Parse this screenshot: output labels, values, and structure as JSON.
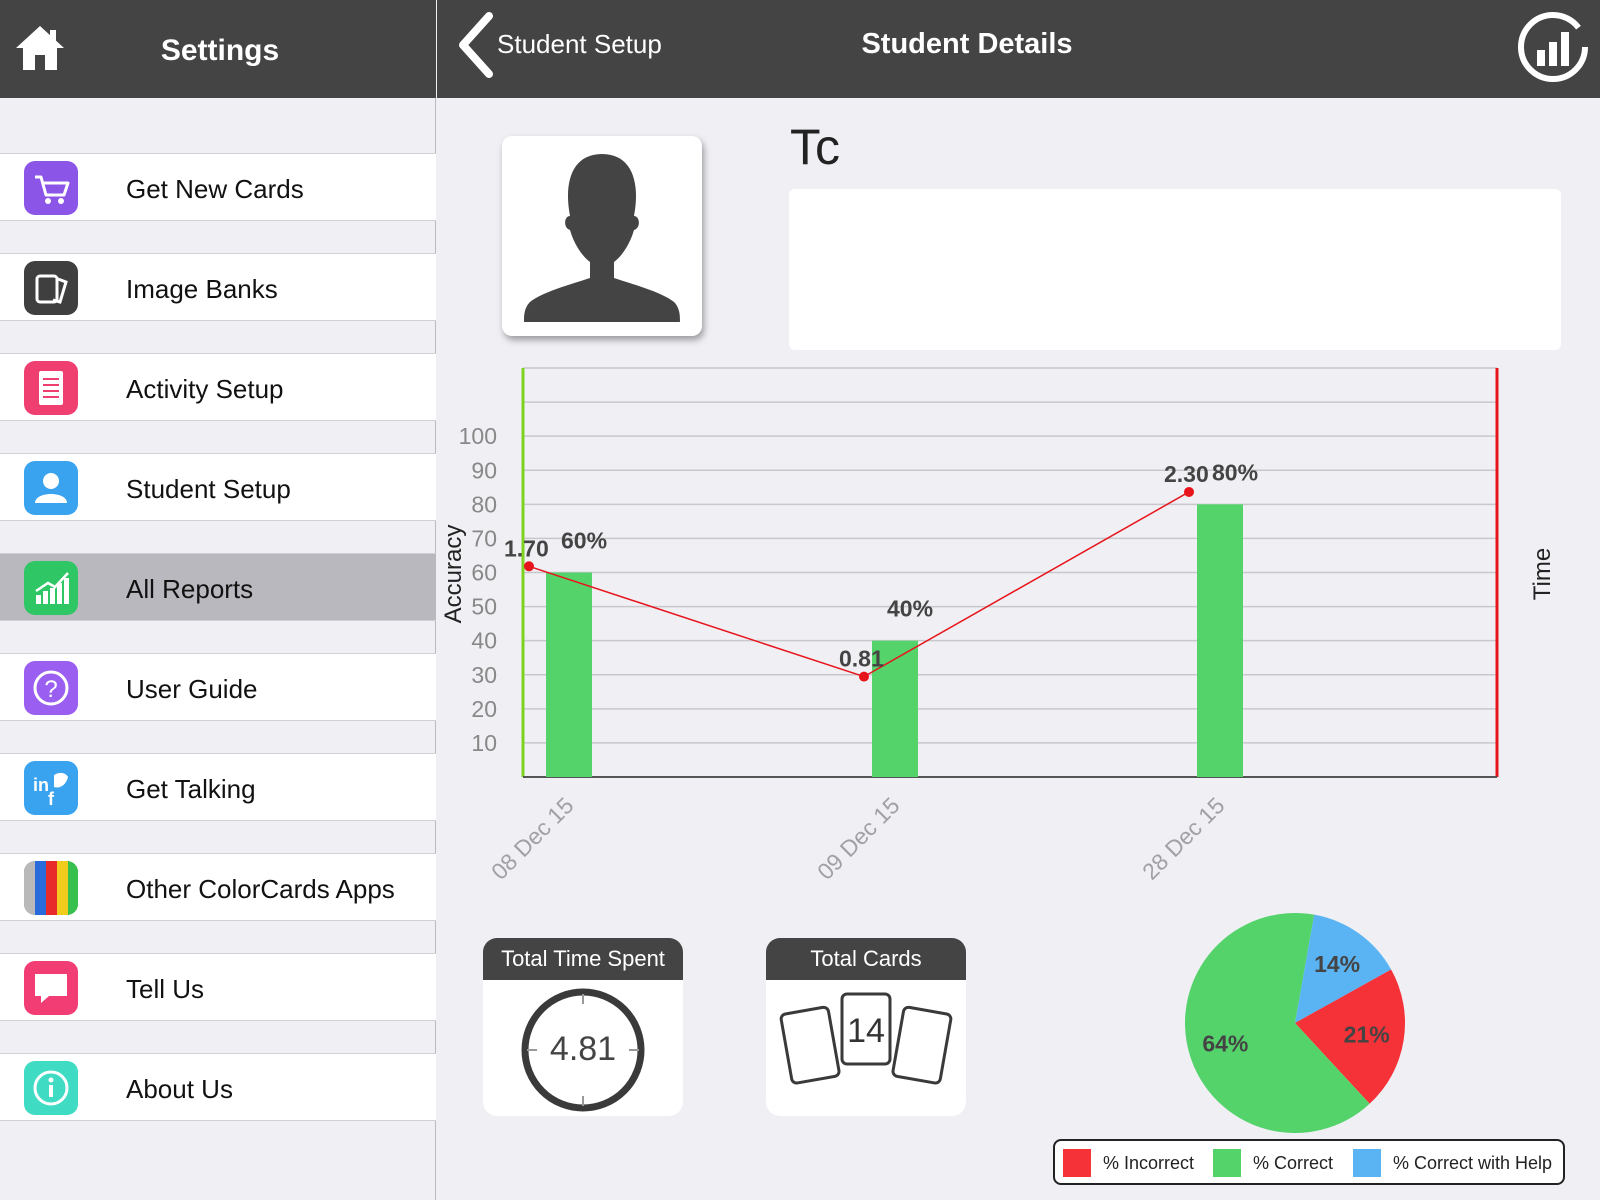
{
  "sidebar": {
    "title": "Settings",
    "items": [
      {
        "label": "Get New Cards",
        "icon": "shopping-cart-icon",
        "color": "#8b55e8"
      },
      {
        "label": "Image Banks",
        "icon": "image-banks-icon",
        "color": "#3f3f3f"
      },
      {
        "label": "Activity Setup",
        "icon": "checklist-icon",
        "color": "#ef3e70"
      },
      {
        "label": "Student Setup",
        "icon": "person-icon",
        "color": "#3aa3ef"
      },
      {
        "label": "All Reports",
        "icon": "bar-chart-icon",
        "color": "#2fc766",
        "selected": true
      },
      {
        "label": "User Guide",
        "icon": "question-icon",
        "color": "#9a5ef0"
      },
      {
        "label": "Get Talking",
        "icon": "social-icon",
        "color": "#3aa3ef"
      },
      {
        "label": "Other ColorCards Apps",
        "icon": "color-stripes-icon",
        "color": "#888888"
      },
      {
        "label": "Tell Us",
        "icon": "speech-bubble-icon",
        "color": "#f23c74"
      },
      {
        "label": "About Us",
        "icon": "info-icon",
        "color": "#3fdcc3"
      }
    ]
  },
  "header": {
    "back_label": "Student Setup",
    "title": "Student Details"
  },
  "student": {
    "name": "Tc",
    "notes": ""
  },
  "chart_data": {
    "type": "bar",
    "categories": [
      "08 Dec 15",
      "09 Dec 15",
      "28 Dec 15"
    ],
    "series": [
      {
        "type": "bar",
        "values": [
          60,
          40,
          80
        ],
        "labels": [
          "60%",
          "40%",
          "80%"
        ],
        "color": "#55d36b"
      },
      {
        "type": "line",
        "values": [
          1.7,
          0.81,
          2.3
        ],
        "labels": [
          "1.70",
          "0.81",
          "2.30"
        ],
        "color": "#e8141c"
      }
    ],
    "ylabel": "Accuracy",
    "y2label": "Time",
    "yticks": [
      10,
      20,
      30,
      40,
      50,
      60,
      70,
      80,
      90,
      100
    ],
    "ylim": [
      0,
      120
    ],
    "y2lim": [
      0,
      3.3
    ],
    "grid": true
  },
  "stats": {
    "time_title": "Total Time Spent",
    "time_value": "4.81",
    "cards_title": "Total Cards",
    "cards_value": "14"
  },
  "pie_chart": {
    "type": "pie",
    "slices": [
      {
        "name": "% Incorrect",
        "value": 21,
        "label": "21%",
        "color": "#f53237"
      },
      {
        "name": "% Correct",
        "value": 64,
        "label": "64%",
        "color": "#55d36b"
      },
      {
        "name": "% Correct with Help",
        "value": 14,
        "label": "14%",
        "color": "#5ab4f4"
      }
    ]
  }
}
